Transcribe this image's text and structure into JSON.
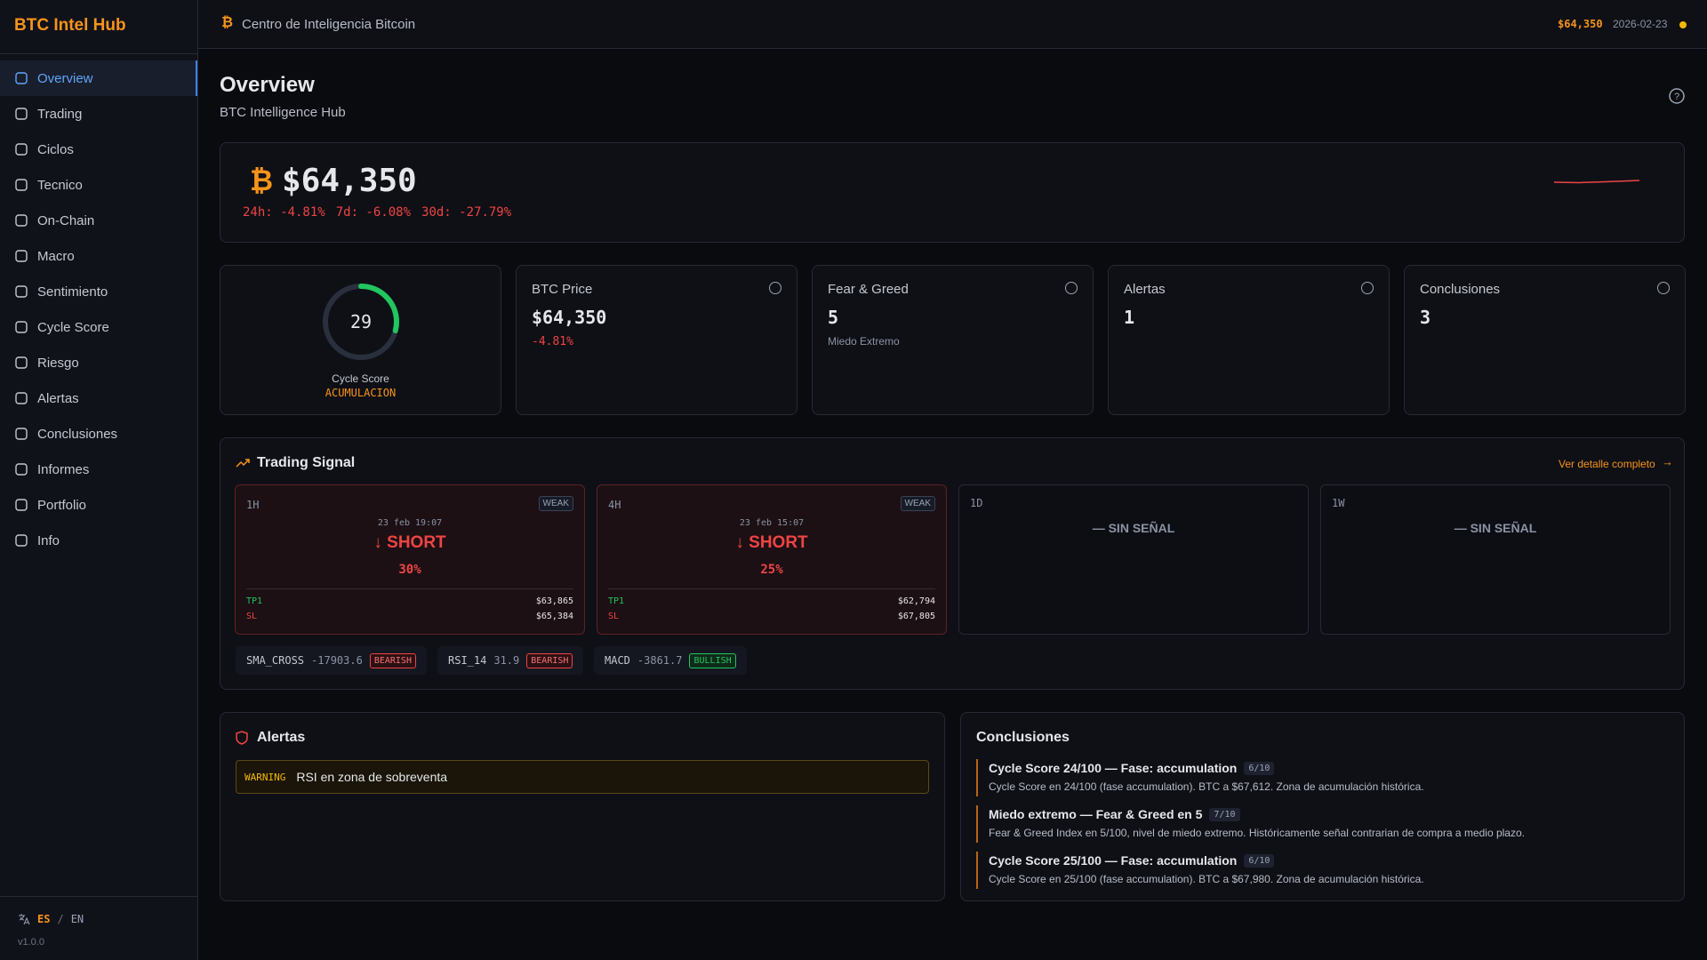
{
  "brand": "BTC Intel Hub",
  "nav": [
    "Overview",
    "Trading",
    "Ciclos",
    "Tecnico",
    "On-Chain",
    "Macro",
    "Sentimiento",
    "Cycle Score",
    "Riesgo",
    "Alertas",
    "Conclusiones",
    "Informes",
    "Portfolio",
    "Info"
  ],
  "active_nav": 0,
  "lang": {
    "es": "ES",
    "separator": "/",
    "en": "EN"
  },
  "version": "v1.0.0",
  "header": {
    "title": "Centro de Inteligencia Bitcoin",
    "price": "$64,350",
    "date": "2026-02-23"
  },
  "page": {
    "title": "Overview",
    "subtitle": "BTC Intelligence Hub"
  },
  "hero": {
    "price": "$64,350",
    "changes": [
      "24h: -4.81%",
      "7d: -6.08%",
      "30d: -27.79%"
    ]
  },
  "cycle": {
    "value": 29,
    "max": 100,
    "label": "Cycle Score",
    "phase": "ACUMULACION"
  },
  "cards": [
    {
      "title": "BTC Price",
      "value": "$64,350",
      "sub": "-4.81%",
      "sub_color": "red"
    },
    {
      "title": "Fear & Greed",
      "value": "5",
      "sub": "Miedo Extremo",
      "sub_color": "muted"
    },
    {
      "title": "Alertas",
      "value": "1"
    },
    {
      "title": "Conclusiones",
      "value": "3"
    }
  ],
  "trading": {
    "title": "Trading Signal",
    "link": "Ver detalle completo",
    "signals": [
      {
        "tf": "1H",
        "strength": "WEAK",
        "time": "23 feb 19:07",
        "direction": "SHORT",
        "confidence": "30%",
        "tp_label": "TP1",
        "tp": "$63,865",
        "sl_label": "SL",
        "sl": "$65,384"
      },
      {
        "tf": "4H",
        "strength": "WEAK",
        "time": "23 feb 15:07",
        "direction": "SHORT",
        "confidence": "25%",
        "tp_label": "TP1",
        "tp": "$62,794",
        "sl_label": "SL",
        "sl": "$67,805"
      },
      {
        "tf": "1D",
        "none": "SIN SEÑAL"
      },
      {
        "tf": "1W",
        "none": "SIN SEÑAL"
      }
    ],
    "indicators": [
      {
        "name": "SMA_CROSS",
        "value": -17903.6,
        "signal": "BEARISH"
      },
      {
        "name": "RSI_14",
        "value": 31.9,
        "signal": "BEARISH"
      },
      {
        "name": "MACD",
        "value": -3861.7,
        "signal": "BULLISH"
      }
    ]
  },
  "alerts": {
    "title": "Alertas",
    "items": [
      {
        "level": "WARNING",
        "text": "RSI en zona de sobreventa"
      }
    ]
  },
  "conclusions": {
    "title": "Conclusiones",
    "items": [
      {
        "title": "Cycle Score 24/100 — Fase: accumulation",
        "score": "6/10",
        "text": "Cycle Score en 24/100 (fase accumulation). BTC a $67,612. Zona de acumulación histórica."
      },
      {
        "title": "Miedo extremo — Fear & Greed en 5",
        "score": "7/10",
        "text": "Fear & Greed Index en 5/100, nivel de miedo extremo. Históricamente señal contrarian de compra a medio plazo."
      },
      {
        "title": "Cycle Score 25/100 — Fase: accumulation",
        "score": "6/10",
        "text": "Cycle Score en 25/100 (fase accumulation). BTC a $67,980. Zona de acumulación histórica."
      }
    ]
  }
}
